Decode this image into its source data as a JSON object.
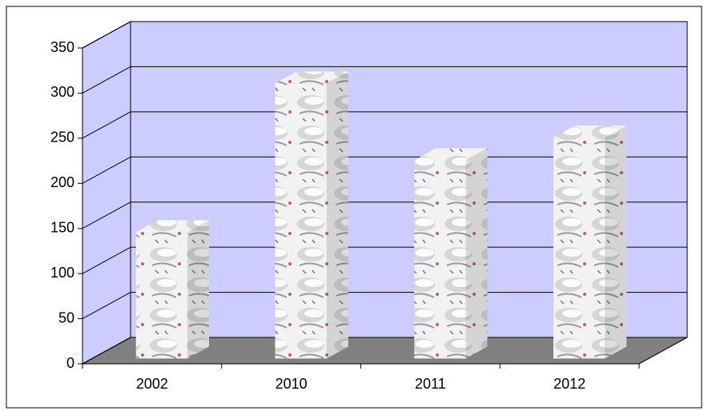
{
  "chart_data": {
    "type": "bar3d",
    "categories": [
      "2002",
      "2010",
      "2011",
      "2012"
    ],
    "values": [
      140,
      305,
      220,
      245
    ],
    "ylim": [
      0,
      350
    ],
    "yticks": [
      0,
      50,
      100,
      150,
      200,
      250,
      300,
      350
    ],
    "grid": true,
    "wall_color": "#ccccff",
    "floor_color": "#808080",
    "color": "#e8e8e8"
  }
}
